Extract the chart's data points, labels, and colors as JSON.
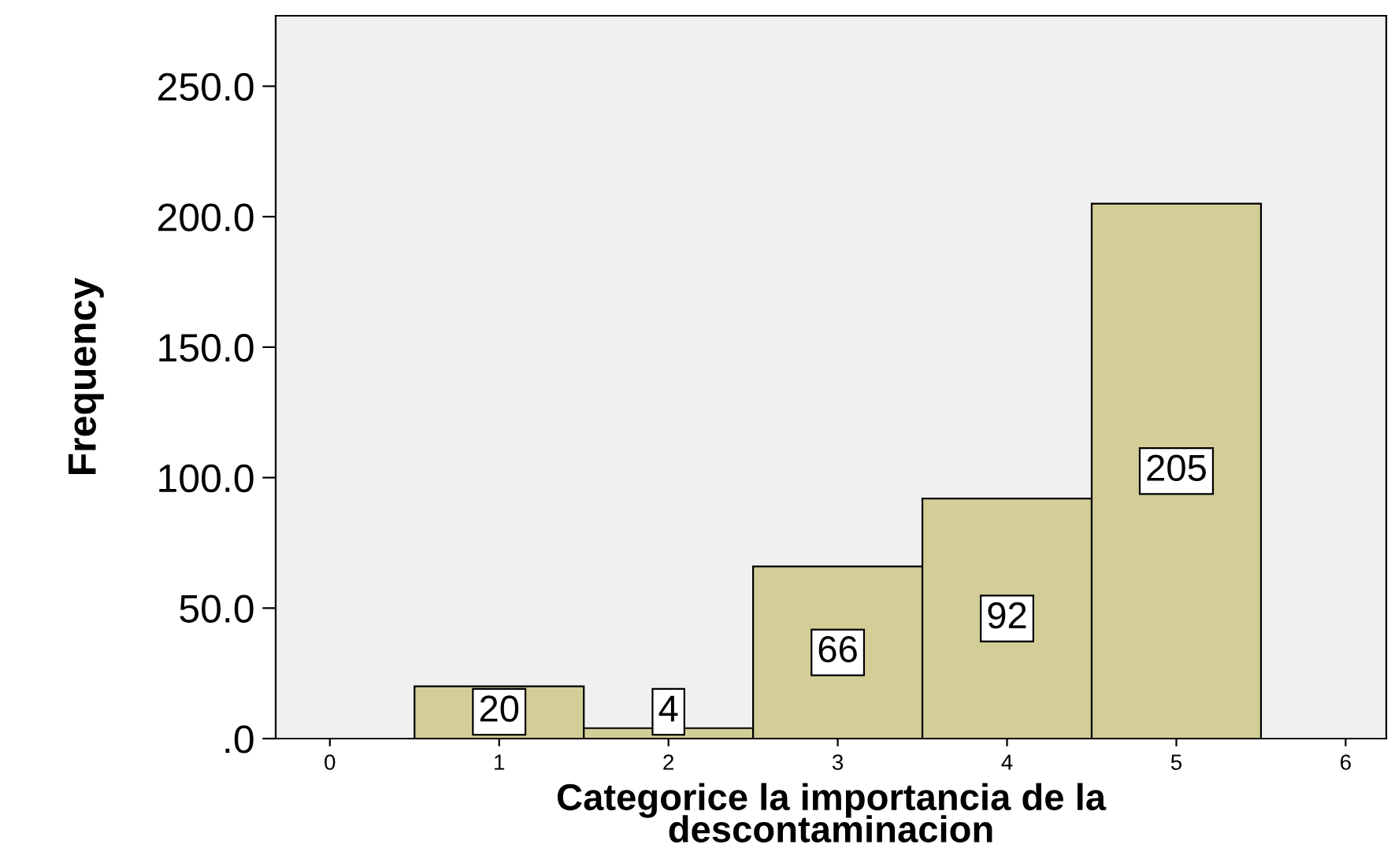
{
  "chart_data": {
    "type": "histogram",
    "bins": [
      0.5,
      1.5,
      2.5,
      3.5,
      4.5,
      5.5
    ],
    "values": [
      20,
      4,
      66,
      92,
      205
    ],
    "color": "#d3ce98",
    "data_labels": true,
    "xlabel": "Categorice la importancia de la\ndescontaminacion",
    "ylabel": "Frequency",
    "xlim": [
      -0.32,
      6.24
    ],
    "xticks": [
      0,
      1,
      2,
      3,
      4,
      5,
      6
    ],
    "ylim": [
      0,
      277
    ],
    "yticks": [
      {
        "value": 0,
        "label": ".0"
      },
      {
        "value": 50,
        "label": "50.0"
      },
      {
        "value": 100,
        "label": "100.0"
      },
      {
        "value": 150,
        "label": "150.0"
      },
      {
        "value": 200,
        "label": "200.0"
      },
      {
        "value": 250,
        "label": "250.0"
      }
    ],
    "grid": false
  }
}
